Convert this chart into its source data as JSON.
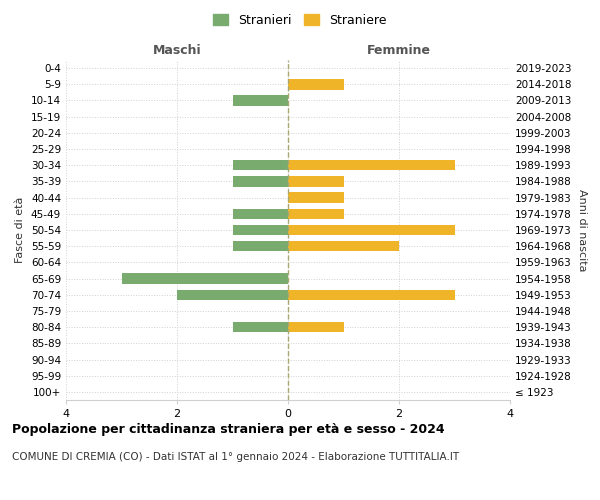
{
  "age_groups": [
    "100+",
    "95-99",
    "90-94",
    "85-89",
    "80-84",
    "75-79",
    "70-74",
    "65-69",
    "60-64",
    "55-59",
    "50-54",
    "45-49",
    "40-44",
    "35-39",
    "30-34",
    "25-29",
    "20-24",
    "15-19",
    "10-14",
    "5-9",
    "0-4"
  ],
  "birth_years": [
    "≤ 1923",
    "1924-1928",
    "1929-1933",
    "1934-1938",
    "1939-1943",
    "1944-1948",
    "1949-1953",
    "1954-1958",
    "1959-1963",
    "1964-1968",
    "1969-1973",
    "1974-1978",
    "1979-1983",
    "1984-1988",
    "1989-1993",
    "1994-1998",
    "1999-2003",
    "2004-2008",
    "2009-2013",
    "2014-2018",
    "2019-2023"
  ],
  "maschi": [
    0,
    0,
    0,
    0,
    1,
    0,
    2,
    3,
    0,
    1,
    1,
    1,
    0,
    1,
    1,
    0,
    0,
    0,
    1,
    0,
    0
  ],
  "femmine": [
    0,
    0,
    0,
    0,
    1,
    0,
    3,
    0,
    0,
    2,
    3,
    1,
    1,
    1,
    3,
    0,
    0,
    0,
    0,
    1,
    0
  ],
  "maschi_color": "#7aab6e",
  "femmine_color": "#f0b429",
  "title": "Popolazione per cittadinanza straniera per età e sesso - 2024",
  "subtitle": "COMUNE DI CREMIA (CO) - Dati ISTAT al 1° gennaio 2024 - Elaborazione TUTTITALIA.IT",
  "legend_maschi": "Stranieri",
  "legend_femmine": "Straniere",
  "label_maschi": "Maschi",
  "label_femmine": "Femmine",
  "ylabel_left": "Fasce di età",
  "ylabel_right": "Anni di nascita",
  "xlim": 4,
  "background_color": "#ffffff",
  "grid_color": "#d0d0d0",
  "bar_height": 0.65
}
